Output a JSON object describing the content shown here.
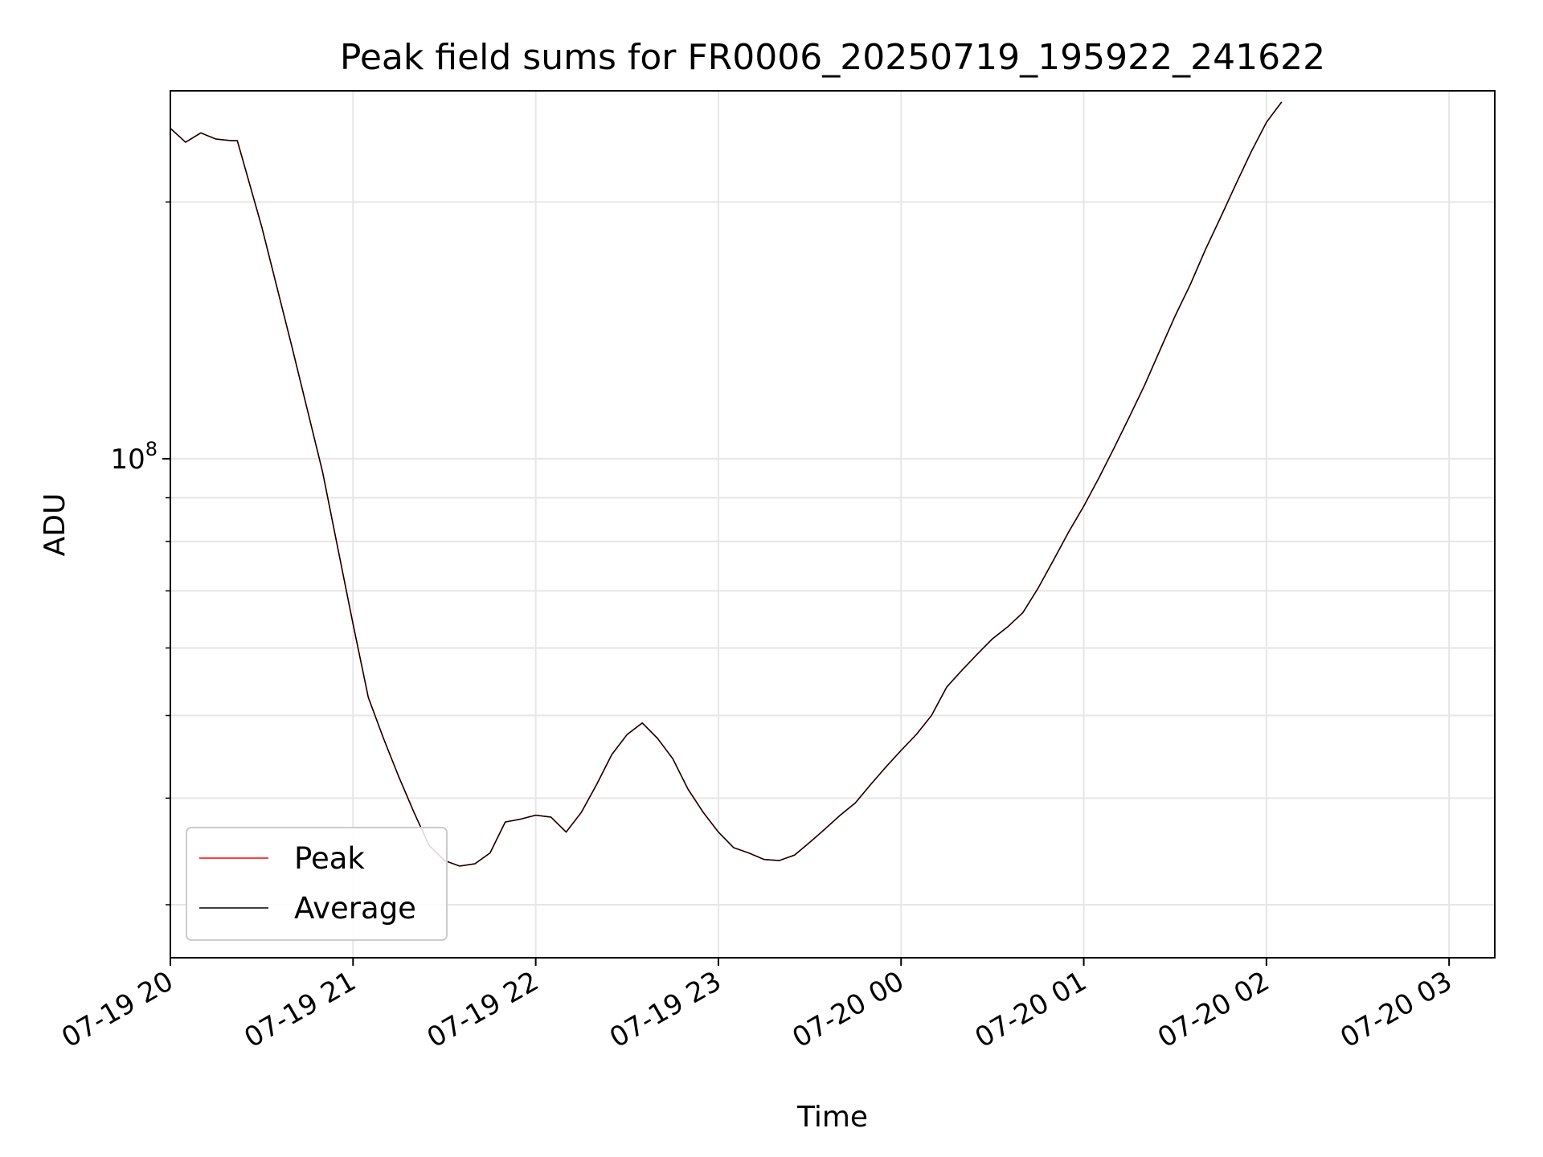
{
  "chart_data": {
    "type": "line",
    "title": "Peak field sums for FR0006_20250719_195922_241622",
    "xlabel": "Time",
    "ylabel": "ADU",
    "y_scale": "log",
    "y_ticks": [
      {
        "value": 100000000,
        "label_base": "10",
        "label_exp": "8"
      }
    ],
    "xlim": [
      "2025-07-19 20:00",
      "2025-07-20 03:15"
    ],
    "ylim": [
      26000000,
      270000000
    ],
    "x_tick_labels": [
      "07-19 20",
      "07-19 21",
      "07-19 22",
      "07-19 23",
      "07-20 00",
      "07-20 01",
      "07-20 02",
      "07-20 03"
    ],
    "grid": true,
    "legend_position": "lower left",
    "series": [
      {
        "name": "Peak",
        "color": "#ff0000",
        "points": [
          [
            "2025-07-19 20:00",
            244000000
          ],
          [
            "2025-07-19 20:05",
            235000000
          ],
          [
            "2025-07-19 20:10",
            241000000
          ],
          [
            "2025-07-19 20:15",
            237000000
          ],
          [
            "2025-07-19 20:20",
            236000000
          ],
          [
            "2025-07-19 20:22",
            236000000
          ],
          [
            "2025-07-19 20:30",
            187000000
          ],
          [
            "2025-07-19 20:40",
            135000000
          ],
          [
            "2025-07-19 20:50",
            96500000
          ],
          [
            "2025-07-19 20:55",
            78500000
          ],
          [
            "2025-07-19 21:00",
            64000000
          ],
          [
            "2025-07-19 21:05",
            52500000
          ],
          [
            "2025-07-19 21:10",
            47000000
          ],
          [
            "2025-07-19 21:15",
            42400000
          ],
          [
            "2025-07-19 21:20",
            38500000
          ],
          [
            "2025-07-19 21:25",
            35200000
          ],
          [
            "2025-07-19 21:30",
            33800000
          ],
          [
            "2025-07-19 21:35",
            33300000
          ],
          [
            "2025-07-19 21:40",
            33500000
          ],
          [
            "2025-07-19 21:45",
            34500000
          ],
          [
            "2025-07-19 21:50",
            37500000
          ],
          [
            "2025-07-19 21:55",
            37800000
          ],
          [
            "2025-07-19 22:00",
            38200000
          ],
          [
            "2025-07-19 22:05",
            38000000
          ],
          [
            "2025-07-19 22:10",
            36500000
          ],
          [
            "2025-07-19 22:15",
            38500000
          ],
          [
            "2025-07-19 22:20",
            41500000
          ],
          [
            "2025-07-19 22:25",
            45000000
          ],
          [
            "2025-07-19 22:30",
            47500000
          ],
          [
            "2025-07-19 22:35",
            49000000
          ],
          [
            "2025-07-19 22:40",
            47000000
          ],
          [
            "2025-07-19 22:45",
            44500000
          ],
          [
            "2025-07-19 22:50",
            41000000
          ],
          [
            "2025-07-19 22:55",
            38500000
          ],
          [
            "2025-07-19 23:00",
            36500000
          ],
          [
            "2025-07-19 23:05",
            35000000
          ],
          [
            "2025-07-19 23:10",
            34500000
          ],
          [
            "2025-07-19 23:15",
            33900000
          ],
          [
            "2025-07-19 23:20",
            33800000
          ],
          [
            "2025-07-19 23:25",
            34300000
          ],
          [
            "2025-07-19 23:30",
            35500000
          ],
          [
            "2025-07-19 23:35",
            36800000
          ],
          [
            "2025-07-19 23:40",
            38200000
          ],
          [
            "2025-07-19 23:45",
            39500000
          ],
          [
            "2025-07-19 23:50",
            41500000
          ],
          [
            "2025-07-19 23:55",
            43500000
          ],
          [
            "2025-07-20 00:00",
            45500000
          ],
          [
            "2025-07-20 00:05",
            47500000
          ],
          [
            "2025-07-20 00:10",
            50000000
          ],
          [
            "2025-07-20 00:15",
            54000000
          ],
          [
            "2025-07-20 00:20",
            56500000
          ],
          [
            "2025-07-20 00:25",
            59000000
          ],
          [
            "2025-07-20 00:30",
            61500000
          ],
          [
            "2025-07-20 00:35",
            63500000
          ],
          [
            "2025-07-20 00:40",
            66000000
          ],
          [
            "2025-07-20 00:45",
            70500000
          ],
          [
            "2025-07-20 00:50",
            76000000
          ],
          [
            "2025-07-20 00:55",
            82000000
          ],
          [
            "2025-07-20 01:00",
            88000000
          ],
          [
            "2025-07-20 01:05",
            95000000
          ],
          [
            "2025-07-20 01:10",
            103000000
          ],
          [
            "2025-07-20 01:15",
            112000000
          ],
          [
            "2025-07-20 01:20",
            122000000
          ],
          [
            "2025-07-20 01:25",
            134000000
          ],
          [
            "2025-07-20 01:30",
            147000000
          ],
          [
            "2025-07-20 01:35",
            160000000
          ],
          [
            "2025-07-20 01:40",
            176000000
          ],
          [
            "2025-07-20 01:45",
            192000000
          ],
          [
            "2025-07-20 01:50",
            210000000
          ],
          [
            "2025-07-20 01:55",
            229000000
          ],
          [
            "2025-07-20 02:00",
            248000000
          ],
          [
            "2025-07-20 02:05",
            262000000
          ]
        ]
      },
      {
        "name": "Average",
        "color": "#000000",
        "points": []
      }
    ]
  }
}
